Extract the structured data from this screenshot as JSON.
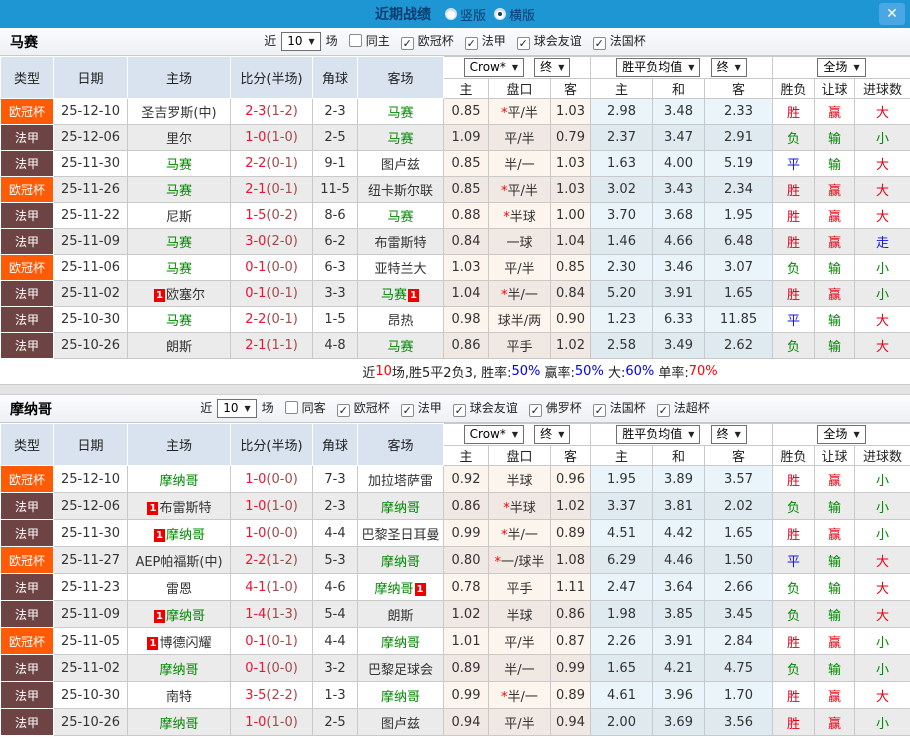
{
  "titlebar": {
    "title": "近期战绩",
    "radios": [
      {
        "label": "竖版",
        "selected": false
      },
      {
        "label": "横版",
        "selected": true
      }
    ],
    "close_label": "✕"
  },
  "columns": {
    "left": [
      "类型",
      "日期",
      "主场",
      "比分(半场)",
      "角球",
      "客场"
    ],
    "sub": [
      "主",
      "盘口",
      "客",
      "主",
      "和",
      "客",
      "胜负",
      "让球",
      "进球数"
    ]
  },
  "controls": {
    "bookmaker": "Crow*",
    "odds_time": "终",
    "avg": "胜平负均值",
    "avg_time": "终",
    "scope": "全场"
  },
  "type_colors": {
    "欧冠杯": "#ff5a05",
    "法甲": "#6e4343"
  },
  "result_colors": {
    "r": "#e60012",
    "g": "#008800",
    "b": "#1414e6"
  },
  "summary_colors": {
    "k": "#222222",
    "r": "#ff0000",
    "b": "#0000ee"
  },
  "sections": [
    {
      "team": "马赛",
      "filters": {
        "near_label": "近",
        "count": "10",
        "matches_label": "场",
        "same": {
          "label": "同主",
          "checked": false
        },
        "competitions": [
          {
            "label": "欧冠杯",
            "checked": true
          },
          {
            "label": "法甲",
            "checked": true
          },
          {
            "label": "球会友谊",
            "checked": true
          },
          {
            "label": "法国杯",
            "checked": true
          }
        ]
      },
      "rows": [
        {
          "type": "欧冠杯",
          "date": "25-12-10",
          "home": "圣吉罗斯(中)",
          "homeSelf": false,
          "homeRed": 0,
          "score": "2-3",
          "half": "(1-2)",
          "corner": "2-3",
          "away": "马赛",
          "awaySelf": true,
          "awayRed": 0,
          "crow": [
            "0.85",
            "*平/半",
            "1.03"
          ],
          "sps": [
            "2.98",
            "3.48",
            "2.33"
          ],
          "res": [
            [
              "胜",
              "r"
            ],
            [
              "赢",
              "r"
            ],
            [
              "大",
              "r"
            ]
          ]
        },
        {
          "type": "法甲",
          "date": "25-12-06",
          "home": "里尔",
          "homeSelf": false,
          "homeRed": 0,
          "score": "1-0",
          "half": "(1-0)",
          "corner": "2-5",
          "away": "马赛",
          "awaySelf": true,
          "awayRed": 0,
          "crow": [
            "1.09",
            "平/半",
            "0.79"
          ],
          "sps": [
            "2.37",
            "3.47",
            "2.91"
          ],
          "res": [
            [
              "负",
              "g"
            ],
            [
              "输",
              "g"
            ],
            [
              "小",
              "g"
            ]
          ]
        },
        {
          "type": "法甲",
          "date": "25-11-30",
          "home": "马赛",
          "homeSelf": true,
          "homeRed": 0,
          "score": "2-2",
          "half": "(0-1)",
          "corner": "9-1",
          "away": "图卢兹",
          "awaySelf": false,
          "awayRed": 0,
          "crow": [
            "0.85",
            "半/一",
            "1.03"
          ],
          "sps": [
            "1.63",
            "4.00",
            "5.19"
          ],
          "res": [
            [
              "平",
              "b"
            ],
            [
              "输",
              "g"
            ],
            [
              "大",
              "r"
            ]
          ]
        },
        {
          "type": "欧冠杯",
          "date": "25-11-26",
          "home": "马赛",
          "homeSelf": true,
          "homeRed": 0,
          "score": "2-1",
          "half": "(0-1)",
          "corner": "11-5",
          "away": "纽卡斯尔联",
          "awaySelf": false,
          "awayRed": 0,
          "crow": [
            "0.85",
            "*平/半",
            "1.03"
          ],
          "sps": [
            "3.02",
            "3.43",
            "2.34"
          ],
          "res": [
            [
              "胜",
              "r"
            ],
            [
              "赢",
              "r"
            ],
            [
              "大",
              "r"
            ]
          ]
        },
        {
          "type": "法甲",
          "date": "25-11-22",
          "home": "尼斯",
          "homeSelf": false,
          "homeRed": 0,
          "score": "1-5",
          "half": "(0-2)",
          "corner": "8-6",
          "away": "马赛",
          "awaySelf": true,
          "awayRed": 0,
          "crow": [
            "0.88",
            "*半球",
            "1.00"
          ],
          "sps": [
            "3.70",
            "3.68",
            "1.95"
          ],
          "res": [
            [
              "胜",
              "r"
            ],
            [
              "赢",
              "r"
            ],
            [
              "大",
              "r"
            ]
          ]
        },
        {
          "type": "法甲",
          "date": "25-11-09",
          "home": "马赛",
          "homeSelf": true,
          "homeRed": 0,
          "score": "3-0",
          "half": "(2-0)",
          "corner": "6-2",
          "away": "布雷斯特",
          "awaySelf": false,
          "awayRed": 0,
          "crow": [
            "0.84",
            "一球",
            "1.04"
          ],
          "sps": [
            "1.46",
            "4.66",
            "6.48"
          ],
          "res": [
            [
              "胜",
              "r"
            ],
            [
              "赢",
              "r"
            ],
            [
              "走",
              "b"
            ]
          ]
        },
        {
          "type": "欧冠杯",
          "date": "25-11-06",
          "home": "马赛",
          "homeSelf": true,
          "homeRed": 0,
          "score": "0-1",
          "half": "(0-0)",
          "corner": "6-3",
          "away": "亚特兰大",
          "awaySelf": false,
          "awayRed": 0,
          "crow": [
            "1.03",
            "平/半",
            "0.85"
          ],
          "sps": [
            "2.30",
            "3.46",
            "3.07"
          ],
          "res": [
            [
              "负",
              "g"
            ],
            [
              "输",
              "g"
            ],
            [
              "小",
              "g"
            ]
          ]
        },
        {
          "type": "法甲",
          "date": "25-11-02",
          "home": "欧塞尔",
          "homeSelf": false,
          "homeRed": 1,
          "score": "0-1",
          "half": "(0-1)",
          "corner": "3-3",
          "away": "马赛",
          "awaySelf": true,
          "awayRed": 1,
          "crow": [
            "1.04",
            "*半/一",
            "0.84"
          ],
          "sps": [
            "5.20",
            "3.91",
            "1.65"
          ],
          "res": [
            [
              "胜",
              "r"
            ],
            [
              "赢",
              "r"
            ],
            [
              "小",
              "g"
            ]
          ]
        },
        {
          "type": "法甲",
          "date": "25-10-30",
          "home": "马赛",
          "homeSelf": true,
          "homeRed": 0,
          "score": "2-2",
          "half": "(0-1)",
          "corner": "1-5",
          "away": "昂热",
          "awaySelf": false,
          "awayRed": 0,
          "crow": [
            "0.98",
            "球半/两",
            "0.90"
          ],
          "sps": [
            "1.23",
            "6.33",
            "11.85"
          ],
          "res": [
            [
              "平",
              "b"
            ],
            [
              "输",
              "g"
            ],
            [
              "大",
              "r"
            ]
          ]
        },
        {
          "type": "法甲",
          "date": "25-10-26",
          "home": "朗斯",
          "homeSelf": false,
          "homeRed": 0,
          "score": "2-1",
          "half": "(1-1)",
          "corner": "4-8",
          "away": "马赛",
          "awaySelf": true,
          "awayRed": 0,
          "crow": [
            "0.86",
            "平手",
            "1.02"
          ],
          "sps": [
            "2.58",
            "3.49",
            "2.62"
          ],
          "res": [
            [
              "负",
              "g"
            ],
            [
              "输",
              "g"
            ],
            [
              "大",
              "r"
            ]
          ]
        }
      ],
      "summary": [
        {
          "text": "近",
          "color": "k"
        },
        {
          "text": "10",
          "color": "r"
        },
        {
          "text": "场,胜5平2负3, 胜率:",
          "color": "k"
        },
        {
          "text": "50%",
          "color": "b"
        },
        {
          "text": " 赢率:",
          "color": "k"
        },
        {
          "text": "50%",
          "color": "b"
        },
        {
          "text": " 大:",
          "color": "k"
        },
        {
          "text": "60%",
          "color": "b"
        },
        {
          "text": " 单率:",
          "color": "k"
        },
        {
          "text": "70%",
          "color": "r"
        }
      ]
    },
    {
      "team": "摩纳哥",
      "filters": {
        "near_label": "近",
        "count": "10",
        "matches_label": "场",
        "same": {
          "label": "同客",
          "checked": false
        },
        "competitions": [
          {
            "label": "欧冠杯",
            "checked": true
          },
          {
            "label": "法甲",
            "checked": true
          },
          {
            "label": "球会友谊",
            "checked": true
          },
          {
            "label": "佛罗杯",
            "checked": true
          },
          {
            "label": "法国杯",
            "checked": true
          },
          {
            "label": "法超杯",
            "checked": true
          }
        ]
      },
      "rows": [
        {
          "type": "欧冠杯",
          "date": "25-12-10",
          "home": "摩纳哥",
          "homeSelf": true,
          "homeRed": 0,
          "score": "1-0",
          "half": "(0-0)",
          "corner": "7-3",
          "away": "加拉塔萨雷",
          "awaySelf": false,
          "awayRed": 0,
          "crow": [
            "0.92",
            "半球",
            "0.96"
          ],
          "sps": [
            "1.95",
            "3.89",
            "3.57"
          ],
          "res": [
            [
              "胜",
              "r"
            ],
            [
              "赢",
              "r"
            ],
            [
              "小",
              "g"
            ]
          ]
        },
        {
          "type": "法甲",
          "date": "25-12-06",
          "home": "布雷斯特",
          "homeSelf": false,
          "homeRed": 1,
          "score": "1-0",
          "half": "(1-0)",
          "corner": "2-3",
          "away": "摩纳哥",
          "awaySelf": true,
          "awayRed": 0,
          "crow": [
            "0.86",
            "*半球",
            "1.02"
          ],
          "sps": [
            "3.37",
            "3.81",
            "2.02"
          ],
          "res": [
            [
              "负",
              "g"
            ],
            [
              "输",
              "g"
            ],
            [
              "小",
              "g"
            ]
          ]
        },
        {
          "type": "法甲",
          "date": "25-11-30",
          "home": "摩纳哥",
          "homeSelf": true,
          "homeRed": 1,
          "score": "1-0",
          "half": "(0-0)",
          "corner": "4-4",
          "away": "巴黎圣日耳曼",
          "awaySelf": false,
          "awayRed": 0,
          "crow": [
            "0.99",
            "*半/一",
            "0.89"
          ],
          "sps": [
            "4.51",
            "4.42",
            "1.65"
          ],
          "res": [
            [
              "胜",
              "r"
            ],
            [
              "赢",
              "r"
            ],
            [
              "小",
              "g"
            ]
          ]
        },
        {
          "type": "欧冠杯",
          "date": "25-11-27",
          "home": "AEP帕福斯(中)",
          "homeSelf": false,
          "homeRed": 0,
          "score": "2-2",
          "half": "(1-2)",
          "corner": "5-3",
          "away": "摩纳哥",
          "awaySelf": true,
          "awayRed": 0,
          "crow": [
            "0.80",
            "*一/球半",
            "1.08"
          ],
          "sps": [
            "6.29",
            "4.46",
            "1.50"
          ],
          "res": [
            [
              "平",
              "b"
            ],
            [
              "输",
              "g"
            ],
            [
              "大",
              "r"
            ]
          ]
        },
        {
          "type": "法甲",
          "date": "25-11-23",
          "home": "雷恩",
          "homeSelf": false,
          "homeRed": 0,
          "score": "4-1",
          "half": "(1-0)",
          "corner": "4-6",
          "away": "摩纳哥",
          "awaySelf": true,
          "awayRed": 1,
          "crow": [
            "0.78",
            "平手",
            "1.11"
          ],
          "sps": [
            "2.47",
            "3.64",
            "2.66"
          ],
          "res": [
            [
              "负",
              "g"
            ],
            [
              "输",
              "g"
            ],
            [
              "大",
              "r"
            ]
          ]
        },
        {
          "type": "法甲",
          "date": "25-11-09",
          "home": "摩纳哥",
          "homeSelf": true,
          "homeRed": 1,
          "score": "1-4",
          "half": "(1-3)",
          "corner": "5-4",
          "away": "朗斯",
          "awaySelf": false,
          "awayRed": 0,
          "crow": [
            "1.02",
            "半球",
            "0.86"
          ],
          "sps": [
            "1.98",
            "3.85",
            "3.45"
          ],
          "res": [
            [
              "负",
              "g"
            ],
            [
              "输",
              "g"
            ],
            [
              "大",
              "r"
            ]
          ]
        },
        {
          "type": "欧冠杯",
          "date": "25-11-05",
          "home": "博德闪耀",
          "homeSelf": false,
          "homeRed": 1,
          "score": "0-1",
          "half": "(0-1)",
          "corner": "4-4",
          "away": "摩纳哥",
          "awaySelf": true,
          "awayRed": 0,
          "crow": [
            "1.01",
            "平/半",
            "0.87"
          ],
          "sps": [
            "2.26",
            "3.91",
            "2.84"
          ],
          "res": [
            [
              "胜",
              "r"
            ],
            [
              "赢",
              "r"
            ],
            [
              "小",
              "g"
            ]
          ]
        },
        {
          "type": "法甲",
          "date": "25-11-02",
          "home": "摩纳哥",
          "homeSelf": true,
          "homeRed": 0,
          "score": "0-1",
          "half": "(0-0)",
          "corner": "3-2",
          "away": "巴黎足球会",
          "awaySelf": false,
          "awayRed": 0,
          "crow": [
            "0.89",
            "半/一",
            "0.99"
          ],
          "sps": [
            "1.65",
            "4.21",
            "4.75"
          ],
          "res": [
            [
              "负",
              "g"
            ],
            [
              "输",
              "g"
            ],
            [
              "小",
              "g"
            ]
          ]
        },
        {
          "type": "法甲",
          "date": "25-10-30",
          "home": "南特",
          "homeSelf": false,
          "homeRed": 0,
          "score": "3-5",
          "half": "(2-2)",
          "corner": "1-3",
          "away": "摩纳哥",
          "awaySelf": true,
          "awayRed": 0,
          "crow": [
            "0.99",
            "*半/一",
            "0.89"
          ],
          "sps": [
            "4.61",
            "3.96",
            "1.70"
          ],
          "res": [
            [
              "胜",
              "r"
            ],
            [
              "赢",
              "r"
            ],
            [
              "大",
              "r"
            ]
          ]
        },
        {
          "type": "法甲",
          "date": "25-10-26",
          "home": "摩纳哥",
          "homeSelf": true,
          "homeRed": 0,
          "score": "1-0",
          "half": "(1-0)",
          "corner": "2-5",
          "away": "图卢兹",
          "awaySelf": false,
          "awayRed": 0,
          "crow": [
            "0.94",
            "平/半",
            "0.94"
          ],
          "sps": [
            "2.00",
            "3.69",
            "3.56"
          ],
          "res": [
            [
              "胜",
              "r"
            ],
            [
              "赢",
              "r"
            ],
            [
              "小",
              "g"
            ]
          ]
        }
      ]
    }
  ]
}
